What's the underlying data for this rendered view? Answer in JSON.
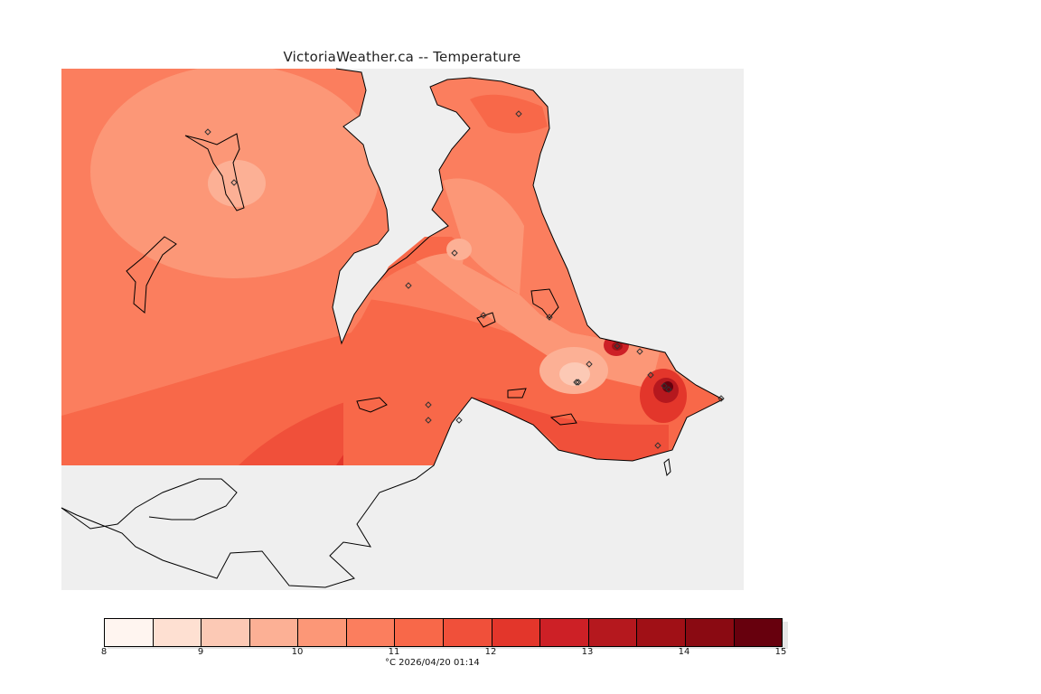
{
  "title": "VictoriaWeather.ca -- Temperature",
  "colors": {
    "background": "#ffffff",
    "outside_grid": "#efefef",
    "land_no_data": "#ffffff",
    "coastline": "#000000"
  },
  "legend": {
    "min": 8,
    "max": 15,
    "step": 0.5,
    "labels": [
      "8",
      "9",
      "10",
      "11",
      "12",
      "13",
      "14",
      "15"
    ],
    "colors": [
      "#fff5f0",
      "#fee0d2",
      "#fcc9b5",
      "#fcb095",
      "#fc9777",
      "#fb7e5e",
      "#f86849",
      "#f0503a",
      "#e3362b",
      "#cd2026",
      "#b5181e",
      "#a01016",
      "#8a0a12",
      "#67000d"
    ]
  },
  "caption": "°C  2026/04/20 01:14",
  "stations_count": 20
}
